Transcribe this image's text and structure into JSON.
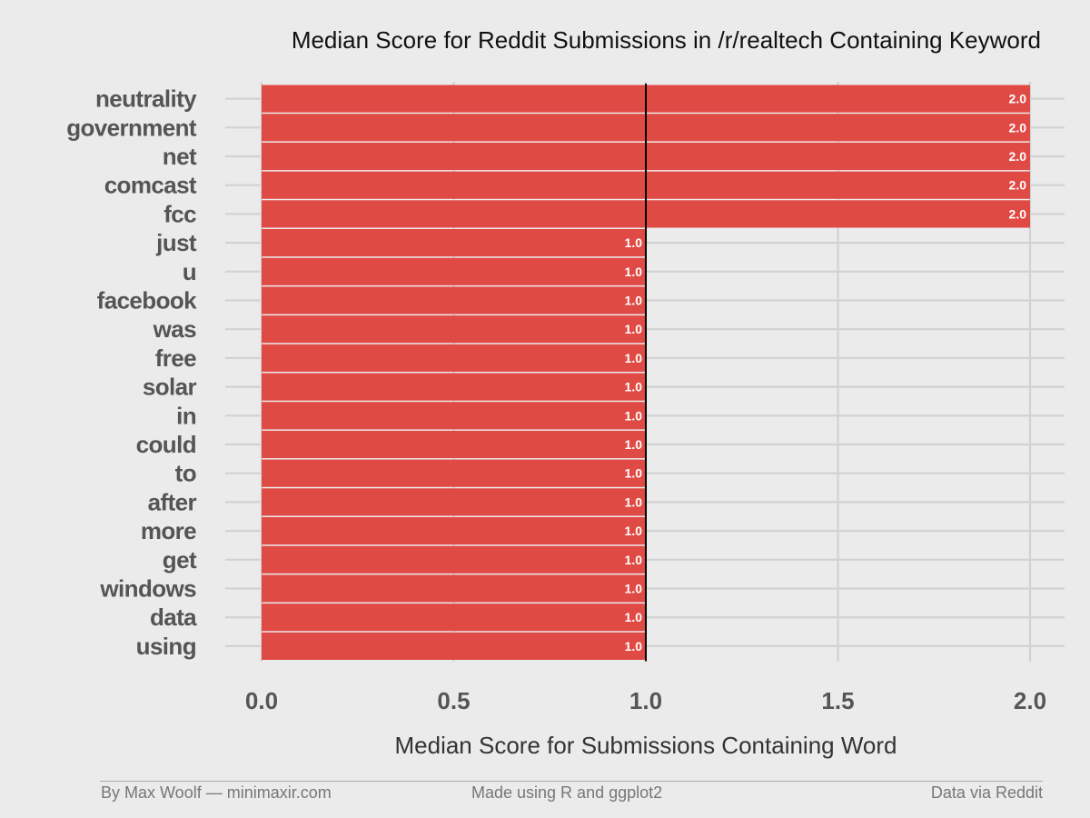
{
  "chart_data": {
    "type": "bar",
    "orientation": "horizontal",
    "title": "Median Score for Reddit Submissions in /r/realtech Containing Keyword",
    "xlabel": "Median Score for Submissions Containing Word",
    "ylabel": "",
    "categories": [
      "neutrality",
      "government",
      "net",
      "comcast",
      "fcc",
      "just",
      "u",
      "facebook",
      "was",
      "free",
      "solar",
      "in",
      "could",
      "to",
      "after",
      "more",
      "get",
      "windows",
      "data",
      "using"
    ],
    "values": [
      2.0,
      2.0,
      2.0,
      2.0,
      2.0,
      1.0,
      1.0,
      1.0,
      1.0,
      1.0,
      1.0,
      1.0,
      1.0,
      1.0,
      1.0,
      1.0,
      1.0,
      1.0,
      1.0,
      1.0
    ],
    "data_labels": [
      "2.0",
      "2.0",
      "2.0",
      "2.0",
      "2.0",
      "1.0",
      "1.0",
      "1.0",
      "1.0",
      "1.0",
      "1.0",
      "1.0",
      "1.0",
      "1.0",
      "1.0",
      "1.0",
      "1.0",
      "1.0",
      "1.0",
      "1.0"
    ],
    "xlim": [
      0,
      2.0
    ],
    "xticks": [
      0,
      0.5,
      1.0,
      1.5,
      2.0
    ],
    "xtick_labels": [
      "0.0",
      "0.5",
      "1.0",
      "1.5",
      "2.0"
    ],
    "reference_line": 1.0,
    "grid": true,
    "bar_color": "#e04a45",
    "background_color": "#ebebeb"
  },
  "footer": {
    "left": "By Max Woolf — minimaxir.com",
    "center": "Made using R and ggplot2",
    "right": "Data via Reddit"
  }
}
